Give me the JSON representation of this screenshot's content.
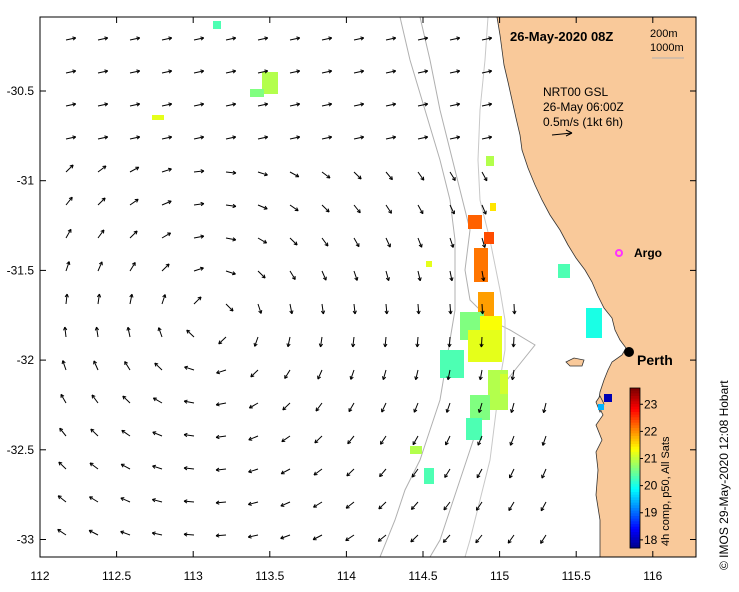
{
  "map": {
    "datetime_title": "26-May-2020 08Z",
    "isobath_legend": [
      "200m",
      "1000m"
    ],
    "current_legend": {
      "product": "NRT00 GSL",
      "datetime": "26-May 06:00Z",
      "scale": "0.5m/s (1kt 6h)"
    },
    "places": [
      {
        "name": "Argo",
        "lon": 115.87,
        "lat": -31.46,
        "marker": "magenta-circle"
      },
      {
        "name": "Perth",
        "lon": 115.86,
        "lat": -31.95,
        "marker": "black-dot"
      }
    ],
    "x_ticks": [
      "112",
      "112.5",
      "113",
      "113.5",
      "114",
      "114.5",
      "115",
      "115.5",
      "116"
    ],
    "y_ticks": [
      "-30.5",
      "-31",
      "-31.5",
      "-32",
      "-32.5",
      "-33"
    ],
    "colorbar": {
      "label": "4h comp, p50, All Sats",
      "ticks": [
        "18",
        "19",
        "20",
        "21",
        "22",
        "23"
      ],
      "range": [
        17.7,
        23.6
      ],
      "colormap": "jet"
    },
    "credit": "© IMOS 29-May-2020 12:08 Hobart",
    "colors": {
      "land": "#f9c99a",
      "ocean": "#ffffff",
      "isobath": "#b0b0b0",
      "arrow": "#000000",
      "argo": "#ff33ff"
    }
  }
}
